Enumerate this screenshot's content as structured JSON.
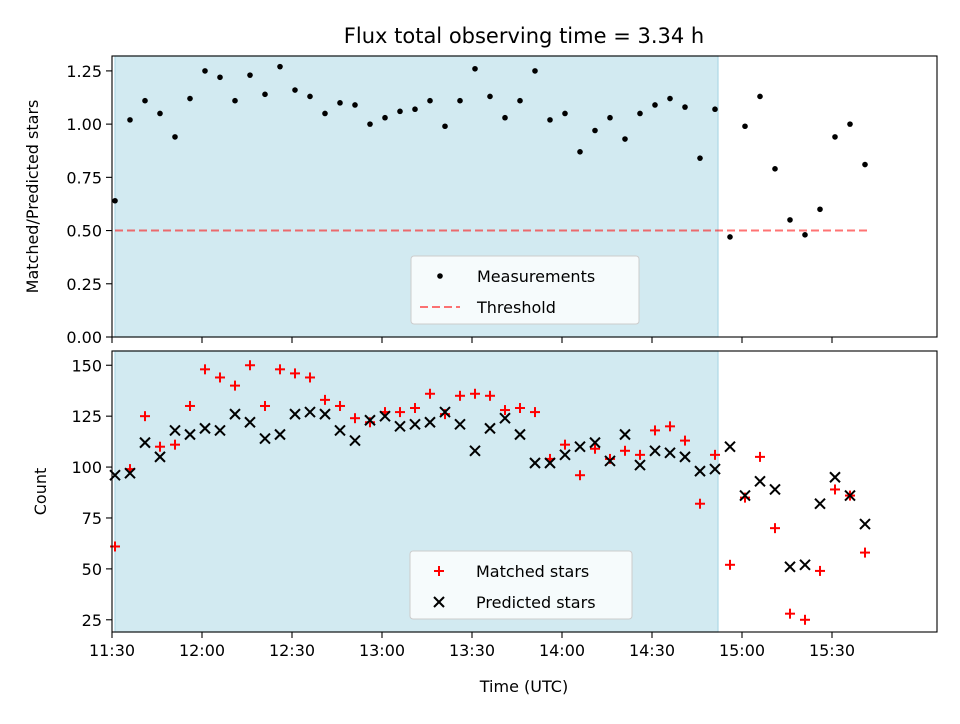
{
  "title": "Flux total observing time = 3.34 h",
  "colors": {
    "span": "#add8e6",
    "measurement": "#000000",
    "threshold": "#ff0000",
    "matched": "#ff0000",
    "predicted": "#000000"
  },
  "xaxis": {
    "label": "Time (UTC)",
    "range_minutes": [
      690,
      965
    ],
    "ticks": [
      {
        "value": 690,
        "label": "11:30"
      },
      {
        "value": 720,
        "label": "12:00"
      },
      {
        "value": 750,
        "label": "12:30"
      },
      {
        "value": 780,
        "label": "13:00"
      },
      {
        "value": 810,
        "label": "13:30"
      },
      {
        "value": 840,
        "label": "14:00"
      },
      {
        "value": 870,
        "label": "14:30"
      },
      {
        "value": 900,
        "label": "15:00"
      },
      {
        "value": 930,
        "label": "15:30"
      }
    ]
  },
  "chart_data": [
    {
      "type": "scatter",
      "ylabel": "Matched/Predicted stars",
      "ylim": [
        0,
        1.32
      ],
      "yticks": [
        "0.00",
        "0.25",
        "0.50",
        "0.75",
        "1.00",
        "1.25"
      ],
      "span": [
        691,
        892
      ],
      "threshold": {
        "name": "Threshold",
        "y": 0.5,
        "x": [
          691,
          942
        ]
      },
      "legend": "bottom-center",
      "series": [
        {
          "name": "Measurements",
          "x": [
            691,
            696,
            701,
            706,
            711,
            716,
            721,
            726,
            731,
            736,
            741,
            746,
            751,
            756,
            761,
            766,
            771,
            776,
            781,
            786,
            791,
            796,
            801,
            806,
            811,
            816,
            821,
            826,
            831,
            836,
            841,
            846,
            851,
            856,
            861,
            866,
            871,
            876,
            881,
            886,
            891,
            896,
            901,
            906,
            911,
            916,
            921,
            926,
            931,
            936,
            941
          ],
          "y": [
            0.64,
            1.02,
            1.11,
            1.05,
            0.94,
            1.12,
            1.25,
            1.22,
            1.11,
            1.23,
            1.14,
            1.27,
            1.16,
            1.13,
            1.05,
            1.1,
            1.09,
            1.0,
            1.03,
            1.06,
            1.07,
            1.11,
            0.99,
            1.11,
            1.26,
            1.13,
            1.03,
            1.11,
            1.25,
            1.02,
            1.05,
            0.87,
            0.97,
            1.03,
            0.93,
            1.05,
            1.09,
            1.12,
            1.08,
            0.84,
            1.07,
            0.47,
            0.99,
            1.13,
            0.79,
            0.55,
            0.48,
            0.6,
            0.94,
            1.0,
            0.81
          ]
        }
      ]
    },
    {
      "type": "scatter",
      "ylabel": "Count",
      "ylim": [
        19,
        157
      ],
      "yticks": [
        "25",
        "50",
        "75",
        "100",
        "125",
        "150"
      ],
      "span": [
        691,
        892
      ],
      "legend": "bottom-center",
      "series": [
        {
          "name": "Matched stars",
          "x": [
            691,
            696,
            701,
            706,
            711,
            716,
            721,
            726,
            731,
            736,
            741,
            746,
            751,
            756,
            761,
            766,
            771,
            776,
            781,
            786,
            791,
            796,
            801,
            806,
            811,
            816,
            821,
            826,
            831,
            836,
            841,
            846,
            851,
            856,
            861,
            866,
            871,
            876,
            881,
            886,
            891,
            896,
            901,
            906,
            911,
            916,
            921,
            926,
            931,
            936,
            941
          ],
          "y": [
            61,
            99,
            125,
            110,
            111,
            130,
            148,
            144,
            140,
            150,
            130,
            148,
            146,
            144,
            133,
            130,
            124,
            122,
            127,
            127,
            129,
            136,
            126,
            135,
            136,
            135,
            128,
            129,
            127,
            104,
            111,
            96,
            109,
            104,
            108,
            106,
            118,
            120,
            113,
            82,
            106,
            52,
            85,
            105,
            70,
            28,
            25,
            49,
            89,
            86,
            58
          ]
        },
        {
          "name": "Predicted stars",
          "x": [
            691,
            696,
            701,
            706,
            711,
            716,
            721,
            726,
            731,
            736,
            741,
            746,
            751,
            756,
            761,
            766,
            771,
            776,
            781,
            786,
            791,
            796,
            801,
            806,
            811,
            816,
            821,
            826,
            831,
            836,
            841,
            846,
            851,
            856,
            861,
            866,
            871,
            876,
            881,
            886,
            891,
            896,
            901,
            906,
            911,
            916,
            921,
            926,
            931,
            936,
            941
          ],
          "y": [
            96,
            97,
            112,
            105,
            118,
            116,
            119,
            118,
            126,
            122,
            114,
            116,
            126,
            127,
            126,
            118,
            113,
            123,
            125,
            120,
            121,
            122,
            127,
            121,
            108,
            119,
            124,
            116,
            102,
            102,
            106,
            110,
            112,
            103,
            116,
            101,
            108,
            107,
            105,
            98,
            99,
            110,
            86,
            93,
            89,
            51,
            52,
            82,
            95,
            86,
            72
          ]
        }
      ]
    }
  ]
}
